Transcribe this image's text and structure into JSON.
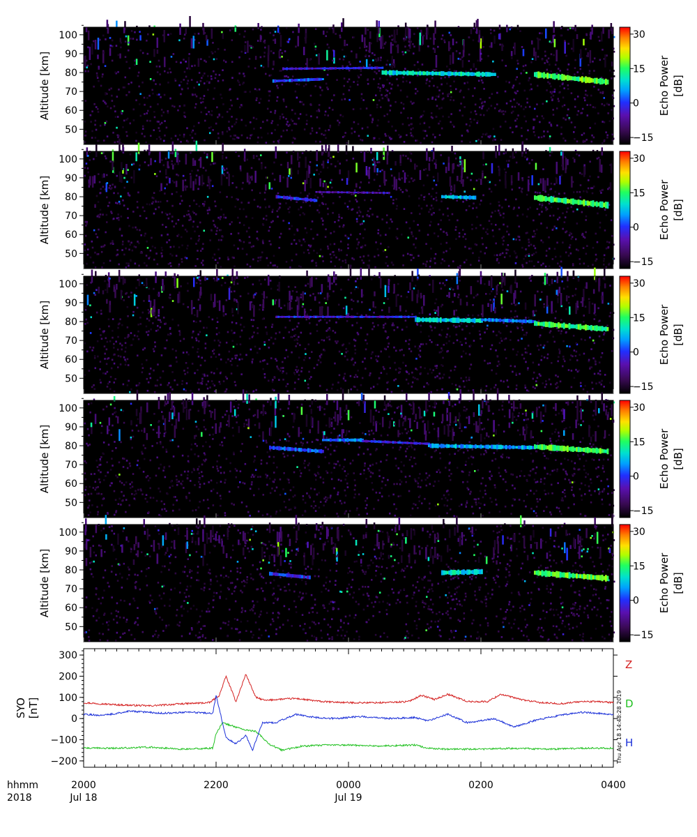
{
  "chart_data": [
    {
      "type": "heatmap",
      "panel": 1,
      "ylabel": "Altitude [km]",
      "ylim": [
        42,
        104
      ],
      "yticks": [
        "50",
        "60",
        "70",
        "80",
        "90",
        "100"
      ],
      "xlim": [
        "2018-07-18 20:00",
        "2018-07-19 04:00"
      ],
      "colorbar": {
        "label_line1": "Echo Power",
        "label_line2": "[dB]",
        "range": [
          -18,
          33
        ],
        "ticks": [
          "−15",
          "0",
          "15",
          "30"
        ]
      },
      "layers": [
        {
          "start_hour": 22.85,
          "end_hour": 23.6,
          "alt_start": 75.5,
          "alt_end": 76.5,
          "power": 0,
          "thickness": 1.4
        },
        {
          "start_hour": 23.0,
          "end_hour": 24.5,
          "alt_start": 82,
          "alt_end": 82.5,
          "power": -4,
          "thickness": 1.2
        },
        {
          "start_hour": 24.5,
          "end_hour": 26.2,
          "alt_start": 80,
          "alt_end": 79,
          "power": 8,
          "thickness": 2.2
        },
        {
          "start_hour": 26.8,
          "end_hour": 27.9,
          "alt_start": 79,
          "alt_end": 75,
          "power": 14,
          "thickness": 2.8
        }
      ],
      "seed": 11
    },
    {
      "type": "heatmap",
      "panel": 2,
      "ylabel": "Altitude [km]",
      "ylim": [
        42,
        104
      ],
      "yticks": [
        "50",
        "60",
        "70",
        "80",
        "90",
        "100"
      ],
      "xlim": [
        "2018-07-18 20:00",
        "2018-07-19 04:00"
      ],
      "colorbar": {
        "label_line1": "Echo Power",
        "label_line2": "[dB]",
        "range": [
          -18,
          33
        ],
        "ticks": [
          "−15",
          "0",
          "15",
          "30"
        ]
      },
      "layers": [
        {
          "start_hour": 22.9,
          "end_hour": 23.5,
          "alt_start": 80,
          "alt_end": 78,
          "power": -2,
          "thickness": 1.6
        },
        {
          "start_hour": 23.5,
          "end_hour": 24.6,
          "alt_start": 82.5,
          "alt_end": 82,
          "power": -6,
          "thickness": 1.0
        },
        {
          "start_hour": 25.4,
          "end_hour": 25.9,
          "alt_start": 80,
          "alt_end": 79.5,
          "power": 5,
          "thickness": 1.8
        },
        {
          "start_hour": 26.8,
          "end_hour": 27.9,
          "alt_start": 79.5,
          "alt_end": 75.5,
          "power": 13,
          "thickness": 2.8
        }
      ],
      "seed": 23
    },
    {
      "type": "heatmap",
      "panel": 3,
      "ylabel": "Altitude [km]",
      "ylim": [
        42,
        104
      ],
      "yticks": [
        "50",
        "60",
        "70",
        "80",
        "90",
        "100"
      ],
      "xlim": [
        "2018-07-18 20:00",
        "2018-07-19 04:00"
      ],
      "colorbar": {
        "label_line1": "Echo Power",
        "label_line2": "[dB]",
        "range": [
          -18,
          33
        ],
        "ticks": [
          "−15",
          "0",
          "15",
          "30"
        ]
      },
      "layers": [
        {
          "start_hour": 22.9,
          "end_hour": 25.0,
          "alt_start": 82.5,
          "alt_end": 82.5,
          "power": -3,
          "thickness": 1.0
        },
        {
          "start_hour": 25.0,
          "end_hour": 26.0,
          "alt_start": 81,
          "alt_end": 80.5,
          "power": 7,
          "thickness": 2.2
        },
        {
          "start_hour": 26.0,
          "end_hour": 26.8,
          "alt_start": 81,
          "alt_end": 80,
          "power": 2,
          "thickness": 1.6
        },
        {
          "start_hour": 26.8,
          "end_hour": 27.9,
          "alt_start": 79,
          "alt_end": 76,
          "power": 13,
          "thickness": 2.6
        }
      ],
      "seed": 37
    },
    {
      "type": "heatmap",
      "panel": 4,
      "ylabel": "Altitude [km]",
      "ylim": [
        42,
        104
      ],
      "yticks": [
        "50",
        "60",
        "70",
        "80",
        "90",
        "100"
      ],
      "xlim": [
        "2018-07-18 20:00",
        "2018-07-19 04:00"
      ],
      "colorbar": {
        "label_line1": "Echo Power",
        "label_line2": "[dB]",
        "range": [
          -18,
          33
        ],
        "ticks": [
          "−15",
          "0",
          "15",
          "30"
        ]
      },
      "layers": [
        {
          "start_hour": 22.8,
          "end_hour": 23.6,
          "alt_start": 79,
          "alt_end": 77,
          "power": 0,
          "thickness": 1.8
        },
        {
          "start_hour": 23.6,
          "end_hour": 24.2,
          "alt_start": 83,
          "alt_end": 83,
          "power": 2,
          "thickness": 1.6
        },
        {
          "start_hour": 24.2,
          "end_hour": 25.2,
          "alt_start": 82.5,
          "alt_end": 81,
          "power": -3,
          "thickness": 1.2
        },
        {
          "start_hour": 25.2,
          "end_hour": 26.8,
          "alt_start": 80,
          "alt_end": 79,
          "power": 4,
          "thickness": 2.0
        },
        {
          "start_hour": 26.8,
          "end_hour": 27.9,
          "alt_start": 79.5,
          "alt_end": 77,
          "power": 13,
          "thickness": 2.6
        }
      ],
      "seed": 49
    },
    {
      "type": "heatmap",
      "panel": 5,
      "ylabel": "Altitude [km]",
      "ylim": [
        42,
        104
      ],
      "yticks": [
        "50",
        "60",
        "70",
        "80",
        "90",
        "100"
      ],
      "xlim": [
        "2018-07-18 20:00",
        "2018-07-19 04:00"
      ],
      "colorbar": {
        "label_line1": "Echo Power",
        "label_line2": "[dB]",
        "range": [
          -18,
          33
        ],
        "ticks": [
          "−15",
          "0",
          "15",
          "30"
        ]
      },
      "layers": [
        {
          "start_hour": 22.8,
          "end_hour": 23.4,
          "alt_start": 78,
          "alt_end": 76,
          "power": -2,
          "thickness": 1.6
        },
        {
          "start_hour": 25.4,
          "end_hour": 26.0,
          "alt_start": 78.5,
          "alt_end": 79,
          "power": 8,
          "thickness": 2.4
        },
        {
          "start_hour": 26.8,
          "end_hour": 27.9,
          "alt_start": 78.5,
          "alt_end": 75.5,
          "power": 14,
          "thickness": 2.8
        }
      ],
      "seed": 61
    },
    {
      "type": "line",
      "panel": 6,
      "ylabel_line1": "SYO",
      "ylabel_line2": "[nT]",
      "ylim": [
        -230,
        330
      ],
      "yticks": [
        "−200",
        "−100",
        "0",
        "100",
        "200",
        "300"
      ],
      "series": [
        {
          "name": "Z",
          "color": "#d42020",
          "x": [
            20.0,
            20.5,
            21.0,
            21.5,
            21.9,
            22.05,
            22.15,
            22.3,
            22.45,
            22.6,
            22.75,
            22.9,
            23.2,
            23.6,
            24.0,
            24.5,
            24.9,
            25.1,
            25.3,
            25.5,
            25.8,
            26.1,
            26.3,
            26.6,
            26.9,
            27.2,
            27.5,
            27.8,
            28.0
          ],
          "y": [
            75,
            65,
            60,
            70,
            75,
            110,
            200,
            80,
            210,
            100,
            85,
            90,
            95,
            80,
            75,
            75,
            80,
            110,
            90,
            115,
            80,
            80,
            115,
            90,
            75,
            70,
            80,
            80,
            75
          ]
        },
        {
          "name": "D",
          "color": "#1fc01f",
          "x": [
            20.0,
            20.5,
            21.0,
            21.5,
            21.95,
            22.0,
            22.1,
            22.3,
            22.45,
            22.6,
            22.8,
            23.0,
            23.3,
            23.7,
            24.0,
            24.5,
            25.0,
            25.2,
            25.5,
            26.0,
            26.5,
            27.0,
            27.5,
            28.0
          ],
          "y": [
            -140,
            -140,
            -135,
            -145,
            -140,
            -70,
            -20,
            -40,
            -55,
            -60,
            -120,
            -150,
            -130,
            -125,
            -125,
            -130,
            -125,
            -140,
            -145,
            -145,
            -140,
            -145,
            -140,
            -140
          ]
        },
        {
          "name": "H",
          "color": "#1a2fd8",
          "x": [
            20.0,
            20.3,
            20.7,
            21.2,
            21.6,
            21.95,
            22.0,
            22.15,
            22.3,
            22.45,
            22.55,
            22.7,
            22.9,
            23.2,
            23.5,
            23.8,
            24.2,
            24.6,
            25.0,
            25.2,
            25.5,
            25.8,
            26.2,
            26.5,
            26.8,
            27.1,
            27.5,
            28.0
          ],
          "y": [
            20,
            15,
            35,
            25,
            30,
            25,
            110,
            -90,
            -120,
            -80,
            -150,
            -20,
            -20,
            20,
            5,
            0,
            10,
            0,
            5,
            -10,
            20,
            -20,
            0,
            -40,
            -10,
            10,
            30,
            20
          ]
        }
      ],
      "legend": [
        "Z",
        "D",
        "H"
      ],
      "stamp": "Thu Apr 18 14:48:28 2019"
    }
  ],
  "x_axis": {
    "row1_label": "hhmm",
    "row2_label": "2018",
    "ticks": [
      {
        "hour": 20,
        "label": "2000",
        "date": "Jul 18"
      },
      {
        "hour": 22,
        "label": "2200",
        "date": ""
      },
      {
        "hour": 24,
        "label": "0000",
        "date": "Jul 19"
      },
      {
        "hour": 26,
        "label": "0200",
        "date": ""
      },
      {
        "hour": 28,
        "label": "0400",
        "date": ""
      }
    ]
  }
}
